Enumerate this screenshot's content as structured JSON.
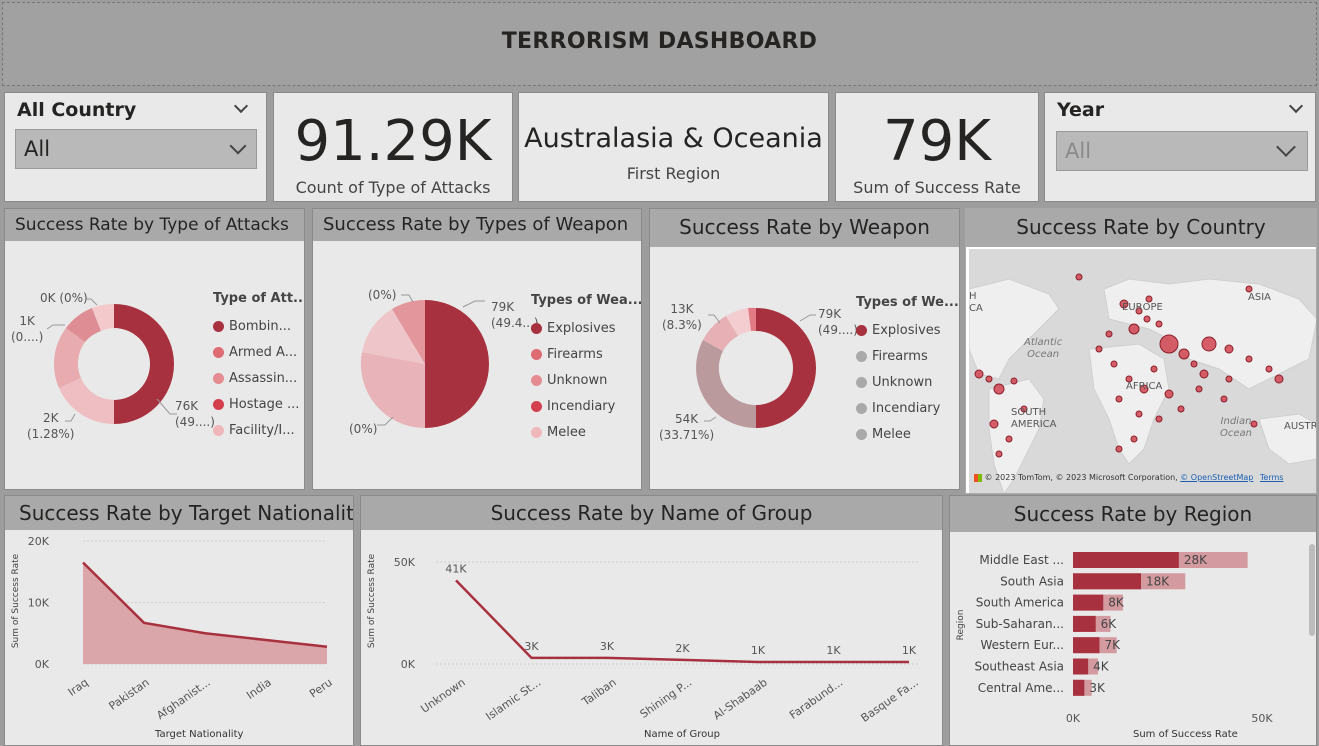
{
  "header": {
    "title": "TERRORISM DASHBOARD"
  },
  "slicers": {
    "country": {
      "label": "All Country",
      "value": "All"
    },
    "year": {
      "label": "Year",
      "value": "All"
    }
  },
  "cards": {
    "attacks": {
      "value": "91.29K",
      "label": "Count of Type of Attacks"
    },
    "region": {
      "value": "Australasia & Oceania",
      "label": "First Region"
    },
    "success": {
      "value": "79K",
      "label": "Sum of Success Rate"
    }
  },
  "donut_attacks": {
    "title": "Success Rate by Type of Attacks",
    "legend_title": "Type of Att...",
    "items": [
      {
        "label": "Bombin...",
        "color": "#a8313f"
      },
      {
        "label": "Armed A...",
        "color": "#df6b73"
      },
      {
        "label": "Assassin...",
        "color": "#e48c92"
      },
      {
        "label": "Hostage ...",
        "color": "#d43f4e"
      },
      {
        "label": "Facility/I...",
        "color": "#f0b7bb"
      }
    ],
    "labels": {
      "a": "76K",
      "a2": "(49....)",
      "b": "2K",
      "b2": "(1.28%)",
      "c": "1K",
      "c2": "(0....)",
      "d": "0K (0%)"
    }
  },
  "pie_weapons": {
    "title": "Success Rate by Types of Weapon",
    "legend_title": "Types of Wea...",
    "items": [
      {
        "label": "Explosives",
        "color": "#a8313f"
      },
      {
        "label": "Firearms",
        "color": "#df6b73"
      },
      {
        "label": "Unknown",
        "color": "#e48c92"
      },
      {
        "label": "Incendiary",
        "color": "#d43f4e"
      },
      {
        "label": "Melee",
        "color": "#f0b7bb"
      }
    ],
    "labels": {
      "a": "79K",
      "a2": "(49.4...)",
      "b": "(0%)",
      "c": "(0%)"
    }
  },
  "donut_weapon": {
    "title": "Success Rate by Weapon",
    "legend_title": "Types of We...",
    "items": [
      {
        "label": "Explosives",
        "color": "#a8313f"
      },
      {
        "label": "Firearms",
        "color": "#a9a9a9"
      },
      {
        "label": "Unknown",
        "color": "#a9a9a9"
      },
      {
        "label": "Incendiary",
        "color": "#a9a9a9"
      },
      {
        "label": "Melee",
        "color": "#a9a9a9"
      }
    ],
    "labels": {
      "a": "79K",
      "a2": "(49....)",
      "b": "13K",
      "b2": "(8.3%)",
      "c": "54K",
      "c2": "(33.71%)"
    }
  },
  "map": {
    "title": "Success Rate by Country",
    "labels": [
      "EUROPE",
      "ASIA",
      "Atlantic",
      "Ocean",
      "AFRICA",
      "SOUTH",
      "AMERICA",
      "Indian",
      "Ocean",
      "H",
      "CA",
      "AUSTR"
    ],
    "copyright": "© 2023 TomTom, © 2023 Microsoft Corporation,",
    "osm": "© OpenStreetMap",
    "terms": "Terms"
  },
  "nationality_chart": {
    "title": "Success Rate by Target Nationality",
    "xlabel": "Target Nationality",
    "ylabel": "Sum of Success Rate",
    "yticks": [
      "20K",
      "10K",
      "0K"
    ]
  },
  "group_chart": {
    "title": "Success Rate by Name of Group",
    "xlabel": "Name of Group",
    "ylabel": "Sum of Success Rate",
    "yticks": [
      "50K",
      "0K"
    ]
  },
  "region_chart": {
    "title": "Success Rate by Region",
    "xlabel": "Sum of Success Rate",
    "ylabel": "Region",
    "xticks": [
      "0K",
      "50K"
    ]
  },
  "chart_data": [
    {
      "type": "area",
      "title": "Success Rate by Target Nationality",
      "xlabel": "Target Nationality",
      "ylabel": "Sum of Success Rate",
      "categories": [
        "Iraq",
        "Pakistan",
        "Afghanist...",
        "India",
        "Peru"
      ],
      "values": [
        16500,
        6700,
        5000,
        3900,
        2800
      ],
      "ylim": [
        0,
        20000
      ]
    },
    {
      "type": "line",
      "title": "Success Rate by Name of Group",
      "xlabel": "Name of Group",
      "ylabel": "Sum of Success Rate",
      "categories": [
        "Unknown",
        "Islamic St...",
        "Taliban",
        "Shining P...",
        "Al-Shabaab",
        "Farabund...",
        "Basque Fa..."
      ],
      "values": [
        41000,
        3000,
        3000,
        2000,
        1000,
        1000,
        1000
      ],
      "data_labels": [
        "41K",
        "3K",
        "3K",
        "2K",
        "1K",
        "1K",
        "1K"
      ],
      "ylim": [
        0,
        50000
      ]
    },
    {
      "type": "bar",
      "title": "Success Rate by Region",
      "xlabel": "Sum of Success Rate",
      "ylabel": "Region",
      "categories": [
        "Middle East ...",
        "South Asia",
        "South America",
        "Sub-Saharan...",
        "Western Eur...",
        "Southeast Asia",
        "Central Ame..."
      ],
      "values": [
        28000,
        18000,
        8000,
        6000,
        7000,
        4000,
        3000
      ],
      "data_labels": [
        "28K",
        "18K",
        "8K",
        "6K",
        "7K",
        "4K",
        "3K"
      ],
      "xlim": [
        0,
        50000
      ]
    }
  ]
}
